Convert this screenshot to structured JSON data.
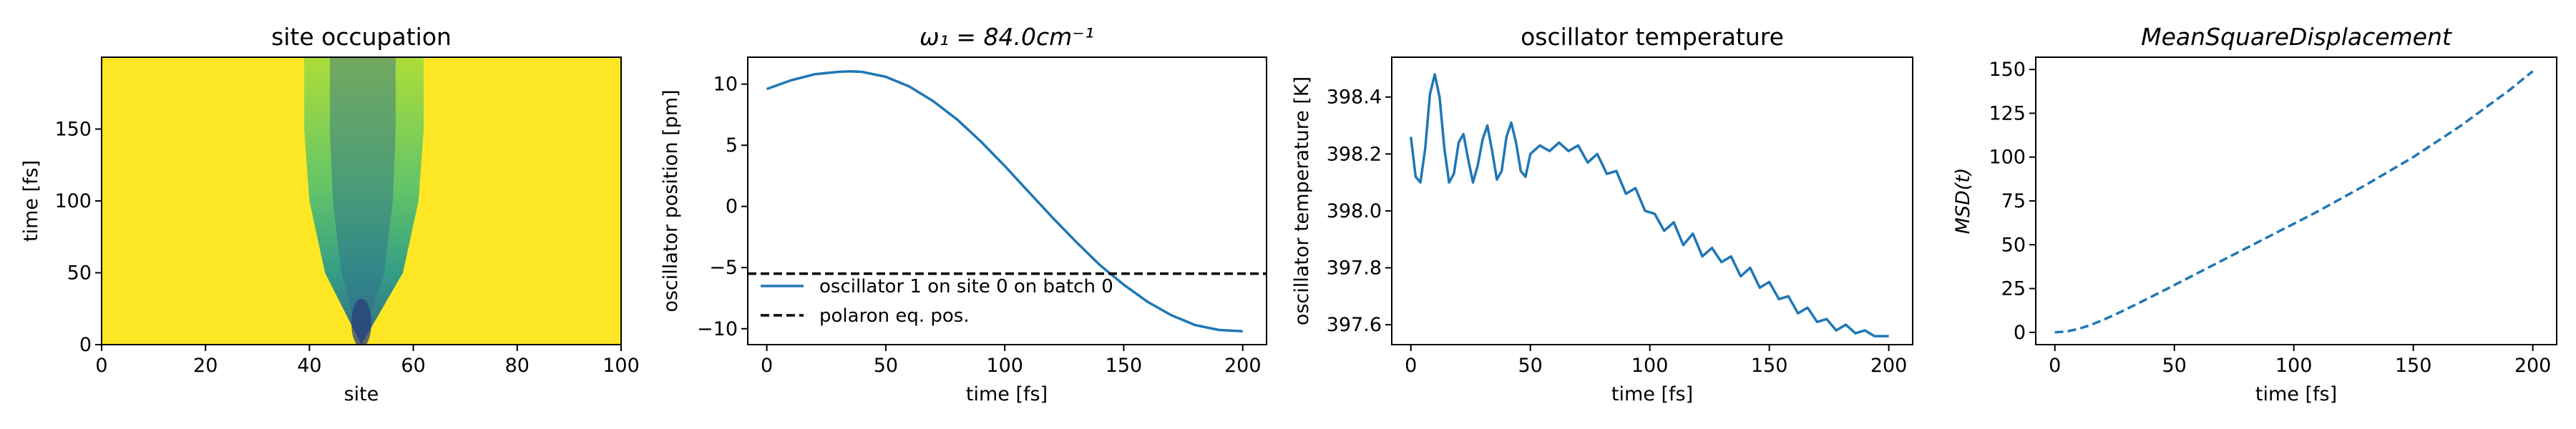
{
  "colors": {
    "series": "#1f77b4",
    "reference": "#000000"
  },
  "chart_data": [
    {
      "type": "heatmap",
      "title": "site occupation",
      "xlabel": "site",
      "ylabel": "time [fs]",
      "xlim": [
        0,
        100
      ],
      "ylim": [
        0,
        200
      ],
      "xticks": [
        "0",
        "20",
        "40",
        "60",
        "80",
        "100"
      ],
      "yticks": [
        "0",
        "50",
        "100",
        "150"
      ],
      "colormap": "viridis",
      "spread_source_site": 50,
      "spread_envelope": [
        {
          "time": 0,
          "left": 50,
          "right": 50
        },
        {
          "time": 50,
          "left": 43,
          "right": 58
        },
        {
          "time": 100,
          "left": 40,
          "right": 61
        },
        {
          "time": 150,
          "left": 39,
          "right": 62
        },
        {
          "time": 200,
          "left": 39,
          "right": 62
        }
      ]
    },
    {
      "type": "line",
      "title": "ω₁ = 84.0cm⁻¹",
      "xlabel": "time [fs]",
      "ylabel": "oscillator position [pm]",
      "xlim": [
        -8,
        210
      ],
      "ylim": [
        -11.3,
        12.2
      ],
      "xticks": [
        "0",
        "50",
        "100",
        "150",
        "200"
      ],
      "yticks": [
        "10",
        "5",
        "0",
        "−5",
        "−10"
      ],
      "legend_position": "lower-left",
      "series": [
        {
          "name": "oscillator 1 on site 0 on batch 0",
          "style": "solid",
          "x": [
            0,
            10,
            20,
            30,
            35,
            40,
            50,
            60,
            70,
            80,
            90,
            100,
            110,
            120,
            130,
            140,
            150,
            160,
            170,
            180,
            190,
            200
          ],
          "y": [
            9.6,
            10.3,
            10.8,
            11.0,
            11.05,
            11.0,
            10.6,
            9.8,
            8.6,
            7.1,
            5.3,
            3.3,
            1.2,
            -0.9,
            -2.9,
            -4.8,
            -6.4,
            -7.8,
            -8.9,
            -9.7,
            -10.1,
            -10.2
          ]
        },
        {
          "name": "polaron eq. pos.",
          "style": "dashed",
          "x": [
            -8,
            210
          ],
          "y": [
            -5.5,
            -5.5
          ]
        }
      ]
    },
    {
      "type": "line",
      "title": "oscillator temperature",
      "xlabel": "time [fs]",
      "ylabel": "oscillator temperature [K]",
      "xlim": [
        -8,
        210
      ],
      "ylim": [
        397.53,
        398.54
      ],
      "xticks": [
        "0",
        "50",
        "100",
        "150",
        "200"
      ],
      "yticks": [
        "398.4",
        "398.2",
        "398.0",
        "397.8",
        "397.6"
      ],
      "series": [
        {
          "style": "solid",
          "x": [
            0,
            2,
            4,
            6,
            8,
            10,
            12,
            14,
            16,
            18,
            20,
            22,
            24,
            26,
            28,
            30,
            32,
            34,
            36,
            38,
            40,
            42,
            44,
            46,
            48,
            50,
            54,
            58,
            62,
            66,
            70,
            74,
            78,
            82,
            86,
            90,
            94,
            98,
            102,
            106,
            110,
            114,
            118,
            122,
            126,
            130,
            134,
            138,
            142,
            146,
            150,
            154,
            158,
            162,
            166,
            170,
            174,
            178,
            182,
            186,
            190,
            194,
            198,
            200
          ],
          "y": [
            398.26,
            398.12,
            398.1,
            398.22,
            398.41,
            398.48,
            398.4,
            398.22,
            398.1,
            398.13,
            398.24,
            398.27,
            398.18,
            398.1,
            398.16,
            398.25,
            398.3,
            398.21,
            398.11,
            398.14,
            398.26,
            398.31,
            398.24,
            398.14,
            398.12,
            398.2,
            398.23,
            398.21,
            398.24,
            398.21,
            398.23,
            398.17,
            398.2,
            398.13,
            398.14,
            398.06,
            398.08,
            398.0,
            397.99,
            397.93,
            397.96,
            397.88,
            397.92,
            397.84,
            397.87,
            397.82,
            397.84,
            397.77,
            397.8,
            397.73,
            397.75,
            397.69,
            397.7,
            397.64,
            397.66,
            397.61,
            397.62,
            397.58,
            397.6,
            397.57,
            397.58,
            397.56,
            397.56,
            397.56
          ]
        }
      ]
    },
    {
      "type": "line",
      "title": "MeanSquareDisplacement",
      "xlabel": "time [fs]",
      "ylabel": "MSD(t)",
      "xlim": [
        -8,
        210
      ],
      "ylim": [
        -7,
        157
      ],
      "xticks": [
        "0",
        "50",
        "100",
        "150",
        "200"
      ],
      "yticks": [
        "0",
        "25",
        "50",
        "75",
        "100",
        "125",
        "150"
      ],
      "series": [
        {
          "style": "dashed",
          "x": [
            0,
            5,
            10,
            15,
            20,
            25,
            30,
            40,
            50,
            60,
            70,
            80,
            90,
            100,
            110,
            120,
            130,
            140,
            150,
            160,
            170,
            180,
            190,
            200
          ],
          "y": [
            0,
            0.5,
            2,
            4.2,
            7,
            10,
            13.3,
            20,
            27,
            34,
            41,
            48,
            55,
            62,
            69,
            76.5,
            84,
            92,
            100,
            109,
            118,
            128,
            138,
            149
          ]
        }
      ]
    }
  ]
}
